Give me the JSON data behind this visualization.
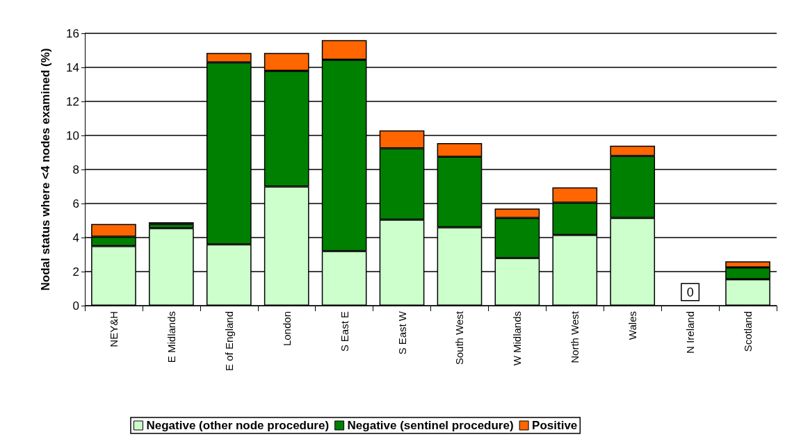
{
  "chart_data": {
    "type": "bar",
    "stacked": true,
    "ylabel": "Nodal status where <4 nodes examined (%)",
    "categories": [
      "NEY&H",
      "E Midlands",
      "E of England",
      "London",
      "S East E",
      "S East W",
      "South West",
      "W Midlands",
      "North West",
      "Wales",
      "N Ireland",
      "Scotland"
    ],
    "series": [
      {
        "name": "Negative (other node procedure)",
        "color": "#ccffcc",
        "values": [
          3.5,
          4.55,
          3.6,
          7.0,
          3.2,
          5.05,
          4.6,
          2.8,
          4.15,
          5.15,
          0,
          1.55
        ]
      },
      {
        "name": "Negative (sentinel procedure)",
        "color": "#008000",
        "values": [
          0.55,
          0.25,
          10.7,
          6.8,
          11.25,
          4.2,
          4.15,
          2.35,
          1.9,
          3.65,
          0,
          0.7
        ]
      },
      {
        "name": "Positive",
        "color": "#ff6600",
        "values": [
          0.75,
          0.1,
          0.55,
          1.05,
          1.15,
          1.05,
          0.8,
          0.55,
          0.9,
          0.6,
          0,
          0.35
        ]
      }
    ],
    "ylim": [
      0,
      16
    ],
    "yticks": [
      0,
      2,
      4,
      6,
      8,
      10,
      12,
      14,
      16
    ],
    "grid": "y",
    "legend": "bottom",
    "annotations": [
      {
        "text": "0",
        "x": "N Ireland",
        "y": 0
      }
    ]
  }
}
